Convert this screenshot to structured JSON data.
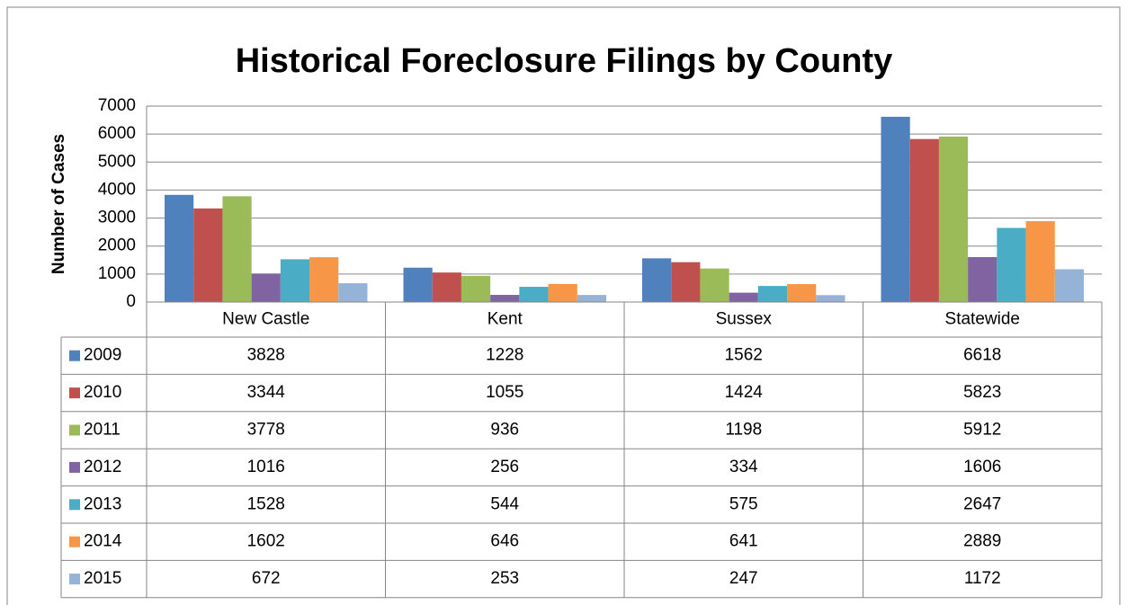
{
  "chart_data": {
    "type": "bar",
    "title": "Historical Foreclosure Filings by County",
    "y_label": "Number of Cases",
    "categories": [
      "New Castle",
      "Kent",
      "Sussex",
      "Statewide"
    ],
    "series": [
      {
        "name": "2009",
        "color": "#4f81bd",
        "values": [
          3828,
          1228,
          1562,
          6618
        ]
      },
      {
        "name": "2010",
        "color": "#c0504d",
        "values": [
          3344,
          1055,
          1424,
          5823
        ]
      },
      {
        "name": "2011",
        "color": "#9bbb59",
        "values": [
          3778,
          936,
          1198,
          5912
        ]
      },
      {
        "name": "2012",
        "color": "#8064a2",
        "values": [
          1016,
          256,
          334,
          1606
        ]
      },
      {
        "name": "2013",
        "color": "#4bacc6",
        "values": [
          1528,
          544,
          575,
          2647
        ]
      },
      {
        "name": "2014",
        "color": "#f79646",
        "values": [
          1602,
          646,
          641,
          2889
        ]
      },
      {
        "name": "2015",
        "color": "#95b3d7",
        "values": [
          672,
          253,
          247,
          1172
        ]
      }
    ],
    "ylim": [
      0,
      7000
    ],
    "yticks": [
      0,
      1000,
      2000,
      3000,
      4000,
      5000,
      6000,
      7000
    ],
    "grid": true
  }
}
